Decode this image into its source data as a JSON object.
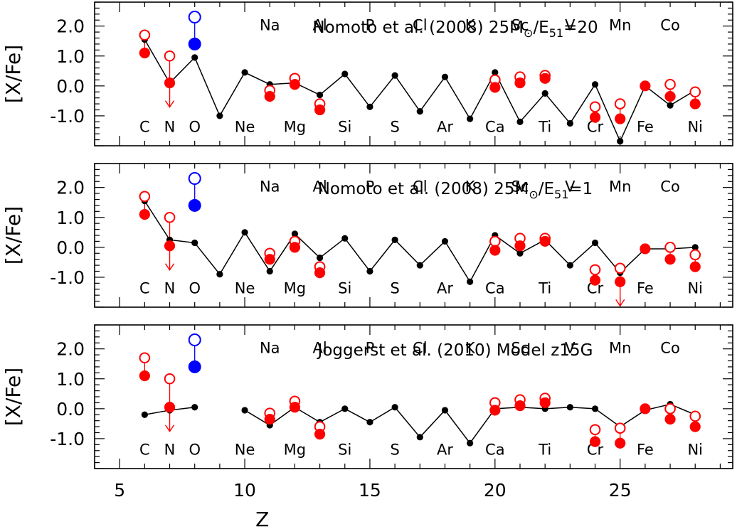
{
  "chart_data": [
    {
      "type": "scatter",
      "title_parts": [
        "Nomoto et al. (2008) 25M",
        "⊙",
        "/E",
        "51",
        "=20"
      ],
      "xlabel": "Z",
      "ylabel": "[X/Fe]",
      "xlim": [
        4,
        29.5
      ],
      "ylim": [
        -2.0,
        2.8
      ],
      "xticks": [
        "5",
        "10",
        "15",
        "20",
        "25"
      ],
      "yticks": [
        "2.0",
        "1.0",
        "0.0",
        "-1.0"
      ],
      "elements_top": [
        {
          "z": 11,
          "label": "Na"
        },
        {
          "z": 13,
          "label": "Al"
        },
        {
          "z": 15,
          "label": "P"
        },
        {
          "z": 17,
          "label": "Cl"
        },
        {
          "z": 19,
          "label": "K"
        },
        {
          "z": 21,
          "label": "Sc"
        },
        {
          "z": 23,
          "label": "V"
        },
        {
          "z": 25,
          "label": "Mn"
        },
        {
          "z": 27,
          "label": "Co"
        }
      ],
      "elements_bottom": [
        {
          "z": 6,
          "label": "C"
        },
        {
          "z": 7,
          "label": "N"
        },
        {
          "z": 8,
          "label": "O"
        },
        {
          "z": 10,
          "label": "Ne"
        },
        {
          "z": 12,
          "label": "Mg"
        },
        {
          "z": 14,
          "label": "Si"
        },
        {
          "z": 16,
          "label": "S"
        },
        {
          "z": 18,
          "label": "Ar"
        },
        {
          "z": 20,
          "label": "Ca"
        },
        {
          "z": 22,
          "label": "Ti"
        },
        {
          "z": 24,
          "label": "Cr"
        },
        {
          "z": 26,
          "label": "Fe"
        },
        {
          "z": 28,
          "label": "Ni"
        }
      ],
      "model": {
        "name": "model yields",
        "color": "#000000",
        "segments": [
          [
            [
              6,
              1.55
            ],
            [
              7,
              0.1
            ],
            [
              8,
              0.95
            ],
            [
              9,
              -1.0
            ],
            [
              10,
              0.45
            ],
            [
              11,
              0.05
            ],
            [
              12,
              0.1
            ],
            [
              13,
              -0.3
            ],
            [
              14,
              0.4
            ],
            [
              15,
              -0.7
            ],
            [
              16,
              0.35
            ],
            [
              17,
              -0.85
            ],
            [
              18,
              0.3
            ],
            [
              19,
              -1.1
            ],
            [
              20,
              0.45
            ],
            [
              21,
              -1.2
            ],
            [
              22,
              -0.25
            ],
            [
              23,
              -1.25
            ],
            [
              24,
              0.05
            ],
            [
              25,
              -1.85
            ],
            [
              26,
              0.0
            ],
            [
              27,
              -0.65
            ],
            [
              28,
              -0.15
            ]
          ]
        ]
      },
      "obs_open": {
        "name": "observed (open)",
        "color": "#ff0000",
        "points": [
          [
            6,
            1.7
          ],
          [
            7,
            1.0
          ],
          [
            11,
            -0.15
          ],
          [
            12,
            0.25
          ],
          [
            13,
            -0.6
          ],
          [
            20,
            0.2
          ],
          [
            21,
            0.3
          ],
          [
            22,
            0.35
          ],
          [
            24,
            -0.7
          ],
          [
            25,
            -0.6
          ],
          [
            27,
            0.05
          ],
          [
            28,
            -0.2
          ]
        ]
      },
      "obs_filled": {
        "name": "observed (filled)",
        "color": "#ff0000",
        "points": [
          [
            6,
            1.1
          ],
          [
            7,
            0.1
          ],
          [
            11,
            -0.35
          ],
          [
            12,
            0.05
          ],
          [
            13,
            -0.8
          ],
          [
            20,
            -0.05
          ],
          [
            21,
            0.1
          ],
          [
            22,
            0.25
          ],
          [
            24,
            -1.05
          ],
          [
            25,
            -1.1
          ],
          [
            26,
            0.0
          ],
          [
            27,
            -0.35
          ],
          [
            28,
            -0.6
          ]
        ]
      },
      "obs_blue": {
        "name": "O",
        "color": "#0000ff",
        "open": [
          8,
          2.3
        ],
        "filled": [
          8,
          1.4
        ]
      },
      "upper_limits": [
        [
          7,
          0.1
        ]
      ]
    },
    {
      "type": "scatter",
      "title_parts": [
        "Nomoto et al. (2008) 25M",
        "⊙",
        "/E",
        "51",
        "=1"
      ],
      "xlabel": "Z",
      "ylabel": "[X/Fe]",
      "xlim": [
        4,
        29.5
      ],
      "ylim": [
        -2.0,
        2.8
      ],
      "xticks": [
        "5",
        "10",
        "15",
        "20",
        "25"
      ],
      "yticks": [
        "2.0",
        "1.0",
        "0.0",
        "-1.0"
      ],
      "elements_top": [
        {
          "z": 11,
          "label": "Na"
        },
        {
          "z": 13,
          "label": "Al"
        },
        {
          "z": 15,
          "label": "P"
        },
        {
          "z": 17,
          "label": "Cl"
        },
        {
          "z": 19,
          "label": "K"
        },
        {
          "z": 21,
          "label": "Sc"
        },
        {
          "z": 23,
          "label": "V"
        },
        {
          "z": 25,
          "label": "Mn"
        },
        {
          "z": 27,
          "label": "Co"
        }
      ],
      "elements_bottom": [
        {
          "z": 6,
          "label": "C"
        },
        {
          "z": 7,
          "label": "N"
        },
        {
          "z": 8,
          "label": "O"
        },
        {
          "z": 10,
          "label": "Ne"
        },
        {
          "z": 12,
          "label": "Mg"
        },
        {
          "z": 14,
          "label": "Si"
        },
        {
          "z": 16,
          "label": "S"
        },
        {
          "z": 18,
          "label": "Ar"
        },
        {
          "z": 20,
          "label": "Ca"
        },
        {
          "z": 22,
          "label": "Ti"
        },
        {
          "z": 24,
          "label": "Cr"
        },
        {
          "z": 26,
          "label": "Fe"
        },
        {
          "z": 28,
          "label": "Ni"
        }
      ],
      "model": {
        "name": "model yields",
        "color": "#000000",
        "segments": [
          [
            [
              6,
              1.55
            ],
            [
              7,
              0.25
            ],
            [
              8,
              0.15
            ],
            [
              9,
              -0.9
            ],
            [
              10,
              0.5
            ],
            [
              11,
              -0.8
            ],
            [
              12,
              0.45
            ],
            [
              13,
              -0.35
            ],
            [
              14,
              0.3
            ],
            [
              15,
              -0.8
            ],
            [
              16,
              0.25
            ],
            [
              17,
              -0.6
            ],
            [
              18,
              0.2
            ],
            [
              19,
              -1.15
            ],
            [
              20,
              0.4
            ],
            [
              21,
              -0.2
            ],
            [
              22,
              0.25
            ],
            [
              23,
              -0.6
            ],
            [
              24,
              0.15
            ],
            [
              25,
              -0.85
            ],
            [
              26,
              -0.05
            ],
            [
              27,
              -0.05
            ],
            [
              28,
              0.0
            ]
          ]
        ]
      },
      "obs_open": {
        "name": "observed (open)",
        "color": "#ff0000",
        "points": [
          [
            6,
            1.7
          ],
          [
            7,
            1.0
          ],
          [
            11,
            -0.2
          ],
          [
            12,
            0.2
          ],
          [
            13,
            -0.65
          ],
          [
            20,
            0.2
          ],
          [
            21,
            0.3
          ],
          [
            22,
            0.3
          ],
          [
            24,
            -0.75
          ],
          [
            25,
            -0.7
          ],
          [
            27,
            0.0
          ],
          [
            28,
            -0.25
          ]
        ]
      },
      "obs_filled": {
        "name": "observed (filled)",
        "color": "#ff0000",
        "points": [
          [
            6,
            1.1
          ],
          [
            7,
            0.05
          ],
          [
            11,
            -0.4
          ],
          [
            12,
            0.0
          ],
          [
            13,
            -0.85
          ],
          [
            20,
            -0.1
          ],
          [
            21,
            0.05
          ],
          [
            22,
            0.2
          ],
          [
            24,
            -1.1
          ],
          [
            25,
            -1.15
          ],
          [
            26,
            -0.05
          ],
          [
            27,
            -0.4
          ],
          [
            28,
            -0.65
          ]
        ]
      },
      "obs_blue": {
        "name": "O",
        "color": "#0000ff",
        "open": [
          8,
          2.3
        ],
        "filled": [
          8,
          1.4
        ]
      },
      "upper_limits": [
        [
          7,
          0.05
        ],
        [
          25,
          -1.15
        ]
      ]
    },
    {
      "type": "scatter",
      "title_parts": [
        "Joggerst et al. (2010)  Model z15G"
      ],
      "xlabel": "Z",
      "ylabel": "[X/Fe]",
      "xlim": [
        4,
        29.5
      ],
      "ylim": [
        -2.0,
        2.8
      ],
      "xticks": [
        "5",
        "10",
        "15",
        "20",
        "25"
      ],
      "yticks": [
        "2.0",
        "1.0",
        "0.0",
        "-1.0"
      ],
      "elements_top": [
        {
          "z": 11,
          "label": "Na"
        },
        {
          "z": 13,
          "label": "Al"
        },
        {
          "z": 15,
          "label": "P"
        },
        {
          "z": 17,
          "label": "Cl"
        },
        {
          "z": 19,
          "label": "K"
        },
        {
          "z": 21,
          "label": "Sc"
        },
        {
          "z": 23,
          "label": "V"
        },
        {
          "z": 25,
          "label": "Mn"
        },
        {
          "z": 27,
          "label": "Co"
        }
      ],
      "elements_bottom": [
        {
          "z": 6,
          "label": "C"
        },
        {
          "z": 7,
          "label": "N"
        },
        {
          "z": 8,
          "label": "O"
        },
        {
          "z": 10,
          "label": "Ne"
        },
        {
          "z": 12,
          "label": "Mg"
        },
        {
          "z": 14,
          "label": "Si"
        },
        {
          "z": 16,
          "label": "S"
        },
        {
          "z": 18,
          "label": "Ar"
        },
        {
          "z": 20,
          "label": "Ca"
        },
        {
          "z": 22,
          "label": "Ti"
        },
        {
          "z": 24,
          "label": "Cr"
        },
        {
          "z": 26,
          "label": "Fe"
        },
        {
          "z": 28,
          "label": "Ni"
        }
      ],
      "model": {
        "name": "model yields",
        "color": "#000000",
        "segments": [
          [
            [
              6,
              -0.2
            ],
            [
              7,
              -0.05
            ],
            [
              8,
              0.05
            ]
          ],
          [
            [
              10,
              -0.05
            ],
            [
              11,
              -0.55
            ],
            [
              12,
              0.05
            ],
            [
              13,
              -0.45
            ],
            [
              14,
              0.0
            ],
            [
              15,
              -0.45
            ],
            [
              16,
              0.05
            ],
            [
              17,
              -0.95
            ],
            [
              18,
              -0.05
            ],
            [
              19,
              -1.15
            ],
            [
              20,
              0.0
            ],
            [
              21,
              0.05
            ],
            [
              22,
              0.0
            ],
            [
              23,
              0.05
            ],
            [
              24,
              0.0
            ],
            [
              25,
              -0.6
            ],
            [
              26,
              -0.05
            ],
            [
              27,
              0.15
            ],
            [
              28,
              -0.2
            ]
          ]
        ]
      },
      "obs_open": {
        "name": "observed (open)",
        "color": "#ff0000",
        "points": [
          [
            6,
            1.7
          ],
          [
            7,
            1.0
          ],
          [
            11,
            -0.15
          ],
          [
            12,
            0.25
          ],
          [
            13,
            -0.6
          ],
          [
            20,
            0.2
          ],
          [
            21,
            0.3
          ],
          [
            22,
            0.35
          ],
          [
            24,
            -0.7
          ],
          [
            25,
            -0.65
          ],
          [
            27,
            0.0
          ],
          [
            28,
            -0.25
          ]
        ]
      },
      "obs_filled": {
        "name": "observed (filled)",
        "color": "#ff0000",
        "points": [
          [
            6,
            1.1
          ],
          [
            7,
            0.05
          ],
          [
            11,
            -0.35
          ],
          [
            12,
            0.05
          ],
          [
            13,
            -0.85
          ],
          [
            20,
            -0.05
          ],
          [
            21,
            0.1
          ],
          [
            22,
            0.2
          ],
          [
            24,
            -1.1
          ],
          [
            25,
            -1.15
          ],
          [
            26,
            0.0
          ],
          [
            27,
            -0.35
          ],
          [
            28,
            -0.6
          ]
        ]
      },
      "obs_blue": {
        "name": "O",
        "color": "#0000ff",
        "open": [
          8,
          2.3
        ],
        "filled": [
          8,
          1.4
        ]
      },
      "upper_limits": [
        [
          7,
          0.05
        ]
      ]
    }
  ]
}
